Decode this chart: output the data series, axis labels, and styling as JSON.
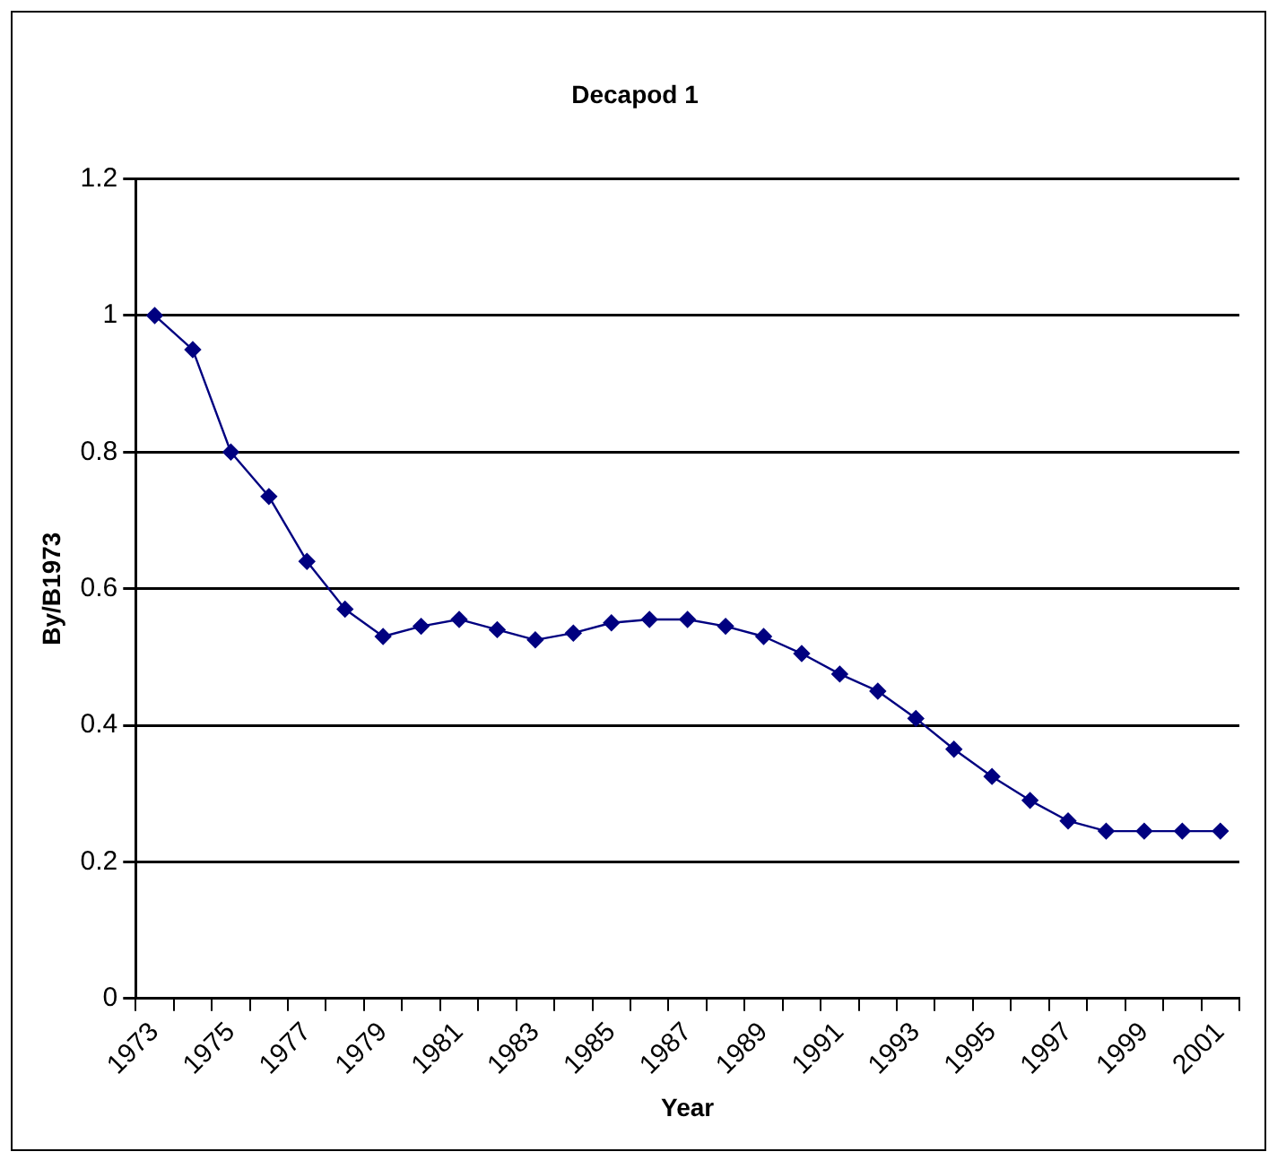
{
  "chart_data": {
    "type": "line",
    "title": "Decapod 1",
    "xlabel": "Year",
    "ylabel": "By/B1973",
    "categories": [
      "1973",
      null,
      "1975",
      null,
      "1977",
      null,
      "1979",
      null,
      "1981",
      null,
      "1983",
      null,
      "1985",
      null,
      "1987",
      null,
      "1989",
      null,
      "1991",
      null,
      "1993",
      null,
      "1995",
      null,
      "1997",
      null,
      "1999",
      null,
      "2001"
    ],
    "series": [
      {
        "color": "#000080",
        "values": [
          1.0,
          0.95,
          0.8,
          0.735,
          0.64,
          0.57,
          0.53,
          0.545,
          0.555,
          0.54,
          0.525,
          0.535,
          0.55,
          0.555,
          0.555,
          0.545,
          0.53,
          0.505,
          0.475,
          0.45,
          0.41,
          0.365,
          0.325,
          0.29,
          0.26,
          0.245,
          0.245,
          0.245,
          0.245
        ]
      }
    ],
    "ylim": [
      0,
      1.2
    ],
    "yticks": [
      0,
      0.2,
      0.4,
      0.6,
      0.8,
      1,
      1.2
    ],
    "grid": "y",
    "legend": false,
    "marker": "diamond",
    "line_style": "solid"
  }
}
